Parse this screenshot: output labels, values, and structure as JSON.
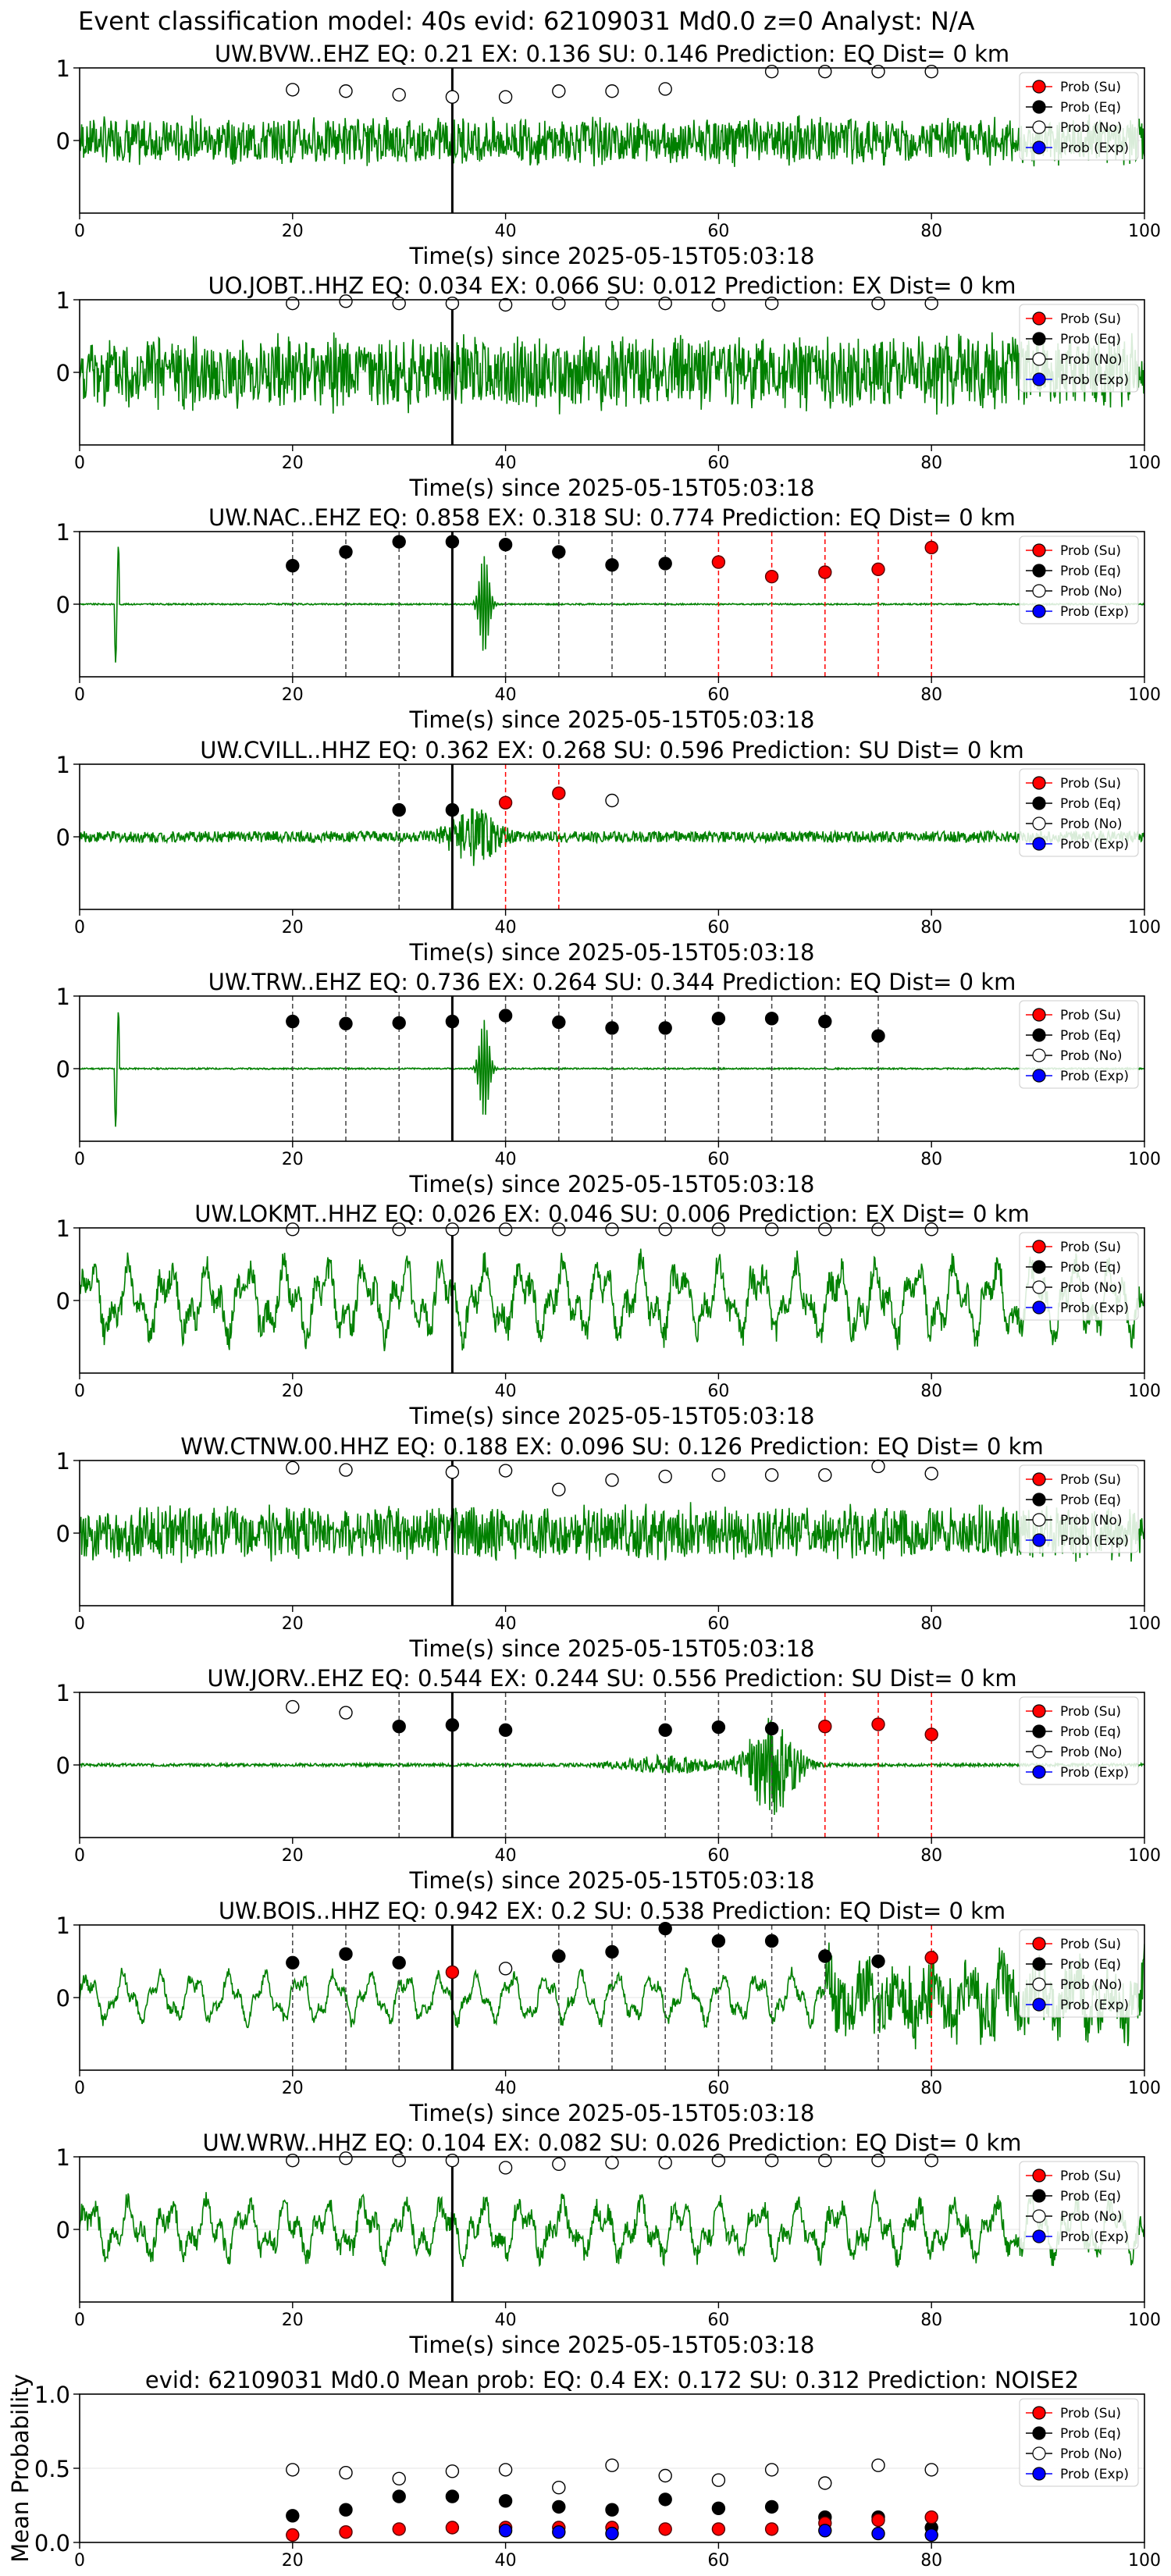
{
  "figure_title": "Event classification model: 40s evid: 62109031 Md0.0 z=0 Analyst: N/A",
  "colors": {
    "trace": "#008000",
    "su": "#ff0000",
    "eq": "#000000",
    "no": "#ffffff",
    "exp": "#0000ff"
  },
  "legend": [
    "Prob (Su)",
    "Prob (Eq)",
    "Prob (No)",
    "Prob (Exp)"
  ],
  "chart_data": [
    {
      "type": "line",
      "title": "UW.BVW..EHZ   EQ: 0.21  EX: 0.136  SU: 0.146   Prediction: EQ    Dist= 0 km",
      "xlabel": "Time(s) since 2025-05-15T05:03:18",
      "ylabel": "",
      "xlim": [
        0,
        100
      ],
      "ylim": [
        -1,
        1
      ],
      "xticks": [
        "0",
        "20",
        "40",
        "60",
        "80",
        "100"
      ],
      "yticks": [
        "1",
        "0"
      ],
      "marker_time": 35,
      "trace_style": "noise",
      "trace_amp": 0.35,
      "su": [],
      "eq": [],
      "no": [
        [
          20,
          0.7
        ],
        [
          25,
          0.68
        ],
        [
          30,
          0.63
        ],
        [
          35,
          0.6
        ],
        [
          40,
          0.6
        ],
        [
          45,
          0.68
        ],
        [
          50,
          0.68
        ],
        [
          55,
          0.71
        ],
        [
          65,
          0.95
        ],
        [
          70,
          0.95
        ],
        [
          75,
          0.95
        ],
        [
          80,
          0.95
        ]
      ],
      "exp": [],
      "eq_lines": [],
      "su_lines": []
    },
    {
      "type": "line",
      "title": "UO.JOBT..HHZ   EQ: 0.034  EX: 0.066  SU: 0.012   Prediction: EX    Dist= 0 km",
      "xlabel": "Time(s) since 2025-05-15T05:03:18",
      "ylabel": "",
      "xlim": [
        0,
        100
      ],
      "ylim": [
        -1,
        1
      ],
      "xticks": [
        "0",
        "20",
        "40",
        "60",
        "80",
        "100"
      ],
      "yticks": [
        "1",
        "0"
      ],
      "marker_time": 35,
      "trace_style": "noise",
      "trace_amp": 0.55,
      "su": [],
      "eq": [],
      "no": [
        [
          20,
          0.95
        ],
        [
          25,
          0.98
        ],
        [
          30,
          0.95
        ],
        [
          35,
          0.95
        ],
        [
          40,
          0.93
        ],
        [
          45,
          0.95
        ],
        [
          50,
          0.95
        ],
        [
          55,
          0.95
        ],
        [
          60,
          0.93
        ],
        [
          65,
          0.95
        ],
        [
          75,
          0.95
        ],
        [
          80,
          0.95
        ]
      ],
      "exp": [],
      "eq_lines": [],
      "su_lines": []
    },
    {
      "type": "line",
      "title": "UW.NAC..EHZ   EQ: 0.858  EX: 0.318  SU: 0.774   Prediction: EQ    Dist= 0 km",
      "xlabel": "Time(s) since 2025-05-15T05:03:18",
      "ylabel": "",
      "xlim": [
        0,
        100
      ],
      "ylim": [
        -1,
        1
      ],
      "xticks": [
        "0",
        "20",
        "40",
        "60",
        "80",
        "100"
      ],
      "yticks": [
        "1",
        "0"
      ],
      "marker_time": 35,
      "trace_style": "flat_spikes",
      "trace_amp": 0.02,
      "su": [
        [
          60,
          0.58
        ],
        [
          65,
          0.38
        ],
        [
          70,
          0.44
        ],
        [
          75,
          0.48
        ],
        [
          80,
          0.78
        ]
      ],
      "eq": [
        [
          20,
          0.53
        ],
        [
          25,
          0.72
        ],
        [
          30,
          0.86
        ],
        [
          35,
          0.86
        ],
        [
          40,
          0.82
        ],
        [
          45,
          0.72
        ],
        [
          50,
          0.54
        ],
        [
          55,
          0.56
        ]
      ],
      "no": [],
      "exp": [],
      "eq_lines": [
        20,
        25,
        30,
        40,
        45,
        50,
        55
      ],
      "su_lines": [
        60,
        65,
        70,
        75,
        80
      ]
    },
    {
      "type": "line",
      "title": "UW.CVILL..HHZ   EQ: 0.362  EX: 0.268  SU: 0.596   Prediction: SU    Dist= 0 km",
      "xlabel": "Time(s) since 2025-05-15T05:03:18",
      "ylabel": "",
      "xlim": [
        0,
        100
      ],
      "ylim": [
        -1,
        1
      ],
      "xticks": [
        "0",
        "20",
        "40",
        "60",
        "80",
        "100"
      ],
      "yticks": [
        "1",
        "0"
      ],
      "marker_time": 35,
      "trace_style": "burst",
      "trace_amp": 0.25,
      "su": [
        [
          40,
          0.47
        ],
        [
          45,
          0.6
        ]
      ],
      "eq": [
        [
          30,
          0.37
        ],
        [
          35,
          0.37
        ]
      ],
      "no": [
        [
          50,
          0.5
        ]
      ],
      "exp": [],
      "eq_lines": [
        30
      ],
      "su_lines": [
        40,
        45
      ]
    },
    {
      "type": "line",
      "title": "UW.TRW..EHZ   EQ: 0.736  EX: 0.264  SU: 0.344   Prediction: EQ    Dist= 0 km",
      "xlabel": "Time(s) since 2025-05-15T05:03:18",
      "ylabel": "",
      "xlim": [
        0,
        100
      ],
      "ylim": [
        -1,
        1
      ],
      "xticks": [
        "0",
        "20",
        "40",
        "60",
        "80",
        "100"
      ],
      "yticks": [
        "1",
        "0"
      ],
      "marker_time": 35,
      "trace_style": "flat_spikes",
      "trace_amp": 0.02,
      "su": [],
      "eq": [
        [
          20,
          0.65
        ],
        [
          25,
          0.62
        ],
        [
          30,
          0.63
        ],
        [
          35,
          0.65
        ],
        [
          40,
          0.73
        ],
        [
          45,
          0.64
        ],
        [
          50,
          0.56
        ],
        [
          55,
          0.56
        ],
        [
          60,
          0.69
        ],
        [
          65,
          0.69
        ],
        [
          70,
          0.65
        ],
        [
          75,
          0.45
        ]
      ],
      "no": [],
      "exp": [],
      "eq_lines": [
        20,
        25,
        30,
        40,
        45,
        50,
        55,
        60,
        65,
        70,
        75
      ],
      "su_lines": []
    },
    {
      "type": "line",
      "title": "UW.LOKMT..HHZ   EQ: 0.026  EX: 0.046  SU: 0.006   Prediction: EX    Dist= 0 km",
      "xlabel": "Time(s) since 2025-05-15T05:03:18",
      "ylabel": "",
      "xlim": [
        0,
        100
      ],
      "ylim": [
        -1,
        1
      ],
      "xticks": [
        "0",
        "20",
        "40",
        "60",
        "80",
        "100"
      ],
      "yticks": [
        "1",
        "0"
      ],
      "marker_time": 35,
      "trace_style": "wave",
      "trace_amp": 0.6,
      "su": [],
      "eq": [],
      "no": [
        [
          20,
          0.98
        ],
        [
          30,
          0.98
        ],
        [
          35,
          0.98
        ],
        [
          40,
          0.98
        ],
        [
          45,
          0.98
        ],
        [
          50,
          0.98
        ],
        [
          55,
          0.98
        ],
        [
          60,
          0.98
        ],
        [
          65,
          0.98
        ],
        [
          70,
          0.98
        ],
        [
          75,
          0.98
        ],
        [
          80,
          0.98
        ]
      ],
      "exp": [],
      "eq_lines": [],
      "su_lines": []
    },
    {
      "type": "line",
      "title": "WW.CTNW.00.HHZ   EQ: 0.188  EX: 0.096  SU: 0.126   Prediction: EQ    Dist= 0 km",
      "xlabel": "Time(s) since 2025-05-15T05:03:18",
      "ylabel": "",
      "xlim": [
        0,
        100
      ],
      "ylim": [
        -1,
        1
      ],
      "xticks": [
        "0",
        "20",
        "40",
        "60",
        "80",
        "100"
      ],
      "yticks": [
        "1",
        "0"
      ],
      "marker_time": 35,
      "trace_style": "noise",
      "trace_amp": 0.4,
      "su": [],
      "eq": [],
      "no": [
        [
          20,
          0.9
        ],
        [
          25,
          0.87
        ],
        [
          35,
          0.84
        ],
        [
          40,
          0.86
        ],
        [
          45,
          0.6
        ],
        [
          50,
          0.73
        ],
        [
          55,
          0.78
        ],
        [
          60,
          0.8
        ],
        [
          65,
          0.8
        ],
        [
          70,
          0.8
        ],
        [
          75,
          0.92
        ],
        [
          80,
          0.82
        ]
      ],
      "exp": [],
      "eq_lines": [],
      "su_lines": []
    },
    {
      "type": "line",
      "title": "UW.JORV..EHZ   EQ: 0.544  EX: 0.244  SU: 0.556   Prediction: SU    Dist= 0 km",
      "xlabel": "Time(s) since 2025-05-15T05:03:18",
      "ylabel": "",
      "xlim": [
        0,
        100
      ],
      "ylim": [
        -1,
        1
      ],
      "xticks": [
        "0",
        "20",
        "40",
        "60",
        "80",
        "100"
      ],
      "yticks": [
        "1",
        "0"
      ],
      "marker_time": 35,
      "trace_style": "late_burst",
      "trace_amp": 0.02,
      "su": [
        [
          70,
          0.53
        ],
        [
          75,
          0.56
        ],
        [
          80,
          0.42
        ]
      ],
      "eq": [
        [
          30,
          0.53
        ],
        [
          35,
          0.55
        ],
        [
          40,
          0.48
        ],
        [
          55,
          0.48
        ],
        [
          60,
          0.52
        ],
        [
          65,
          0.5
        ]
      ],
      "no": [
        [
          20,
          0.8
        ],
        [
          25,
          0.72
        ]
      ],
      "exp": [],
      "eq_lines": [
        30,
        40,
        55,
        60,
        65
      ],
      "su_lines": [
        70,
        75,
        80
      ]
    },
    {
      "type": "line",
      "title": "UW.BOIS..HHZ   EQ: 0.942  EX: 0.2  SU: 0.538   Prediction: EQ    Dist= 0 km",
      "xlabel": "Time(s) since 2025-05-15T05:03:18",
      "ylabel": "",
      "xlim": [
        0,
        100
      ],
      "ylim": [
        -1,
        1
      ],
      "xticks": [
        "0",
        "20",
        "40",
        "60",
        "80",
        "100"
      ],
      "yticks": [
        "1",
        "0"
      ],
      "marker_time": 35,
      "trace_style": "wave_late_noise",
      "trace_amp": 0.55,
      "su": [
        [
          35,
          0.35
        ],
        [
          80,
          0.55
        ]
      ],
      "eq": [
        [
          20,
          0.48
        ],
        [
          25,
          0.6
        ],
        [
          30,
          0.48
        ],
        [
          45,
          0.57
        ],
        [
          50,
          0.63
        ],
        [
          55,
          0.95
        ],
        [
          60,
          0.78
        ],
        [
          65,
          0.78
        ],
        [
          70,
          0.57
        ],
        [
          75,
          0.5
        ]
      ],
      "no": [
        [
          40,
          0.4
        ]
      ],
      "exp": [],
      "eq_lines": [
        20,
        25,
        30,
        45,
        50,
        55,
        60,
        65,
        70,
        75
      ],
      "su_lines": [
        80
      ]
    },
    {
      "type": "line",
      "title": "UW.WRW..HHZ   EQ: 0.104  EX: 0.082  SU: 0.026   Prediction: EQ    Dist= 0 km",
      "xlabel": "Time(s) since 2025-05-15T05:03:18",
      "ylabel": "",
      "xlim": [
        0,
        100
      ],
      "ylim": [
        -1,
        1
      ],
      "xticks": [
        "0",
        "20",
        "40",
        "60",
        "80",
        "100"
      ],
      "yticks": [
        "1",
        "0"
      ],
      "marker_time": 35,
      "trace_style": "wave",
      "trace_amp": 0.45,
      "su": [],
      "eq": [],
      "no": [
        [
          20,
          0.95
        ],
        [
          25,
          0.98
        ],
        [
          30,
          0.95
        ],
        [
          35,
          0.95
        ],
        [
          40,
          0.85
        ],
        [
          45,
          0.9
        ],
        [
          50,
          0.92
        ],
        [
          55,
          0.92
        ],
        [
          60,
          0.95
        ],
        [
          65,
          0.95
        ],
        [
          70,
          0.95
        ],
        [
          75,
          0.95
        ],
        [
          80,
          0.95
        ]
      ],
      "exp": [],
      "eq_lines": [],
      "su_lines": []
    },
    {
      "type": "scatter",
      "title": "evid: 62109031   Md0.0   Mean prob:   EQ: 0.4  EX: 0.172  SU: 0.312   Prediction: NOISE2",
      "xlabel": "",
      "ylabel": "Mean Probability",
      "xlim": [
        0,
        100
      ],
      "ylim": [
        0,
        1
      ],
      "xticks": [
        "0",
        "20",
        "40",
        "60",
        "80",
        "100"
      ],
      "yticks": [
        "1.0",
        "0.5",
        "0.0"
      ],
      "marker_time": null,
      "trace_style": "none",
      "trace_amp": 0,
      "su": [
        [
          20,
          0.05
        ],
        [
          25,
          0.07
        ],
        [
          30,
          0.09
        ],
        [
          35,
          0.1
        ],
        [
          40,
          0.1
        ],
        [
          45,
          0.1
        ],
        [
          50,
          0.1
        ],
        [
          55,
          0.09
        ],
        [
          60,
          0.09
        ],
        [
          65,
          0.09
        ],
        [
          70,
          0.13
        ],
        [
          75,
          0.15
        ],
        [
          80,
          0.17
        ]
      ],
      "eq": [
        [
          20,
          0.18
        ],
        [
          25,
          0.22
        ],
        [
          30,
          0.31
        ],
        [
          35,
          0.31
        ],
        [
          40,
          0.28
        ],
        [
          45,
          0.24
        ],
        [
          50,
          0.22
        ],
        [
          55,
          0.29
        ],
        [
          60,
          0.23
        ],
        [
          65,
          0.24
        ],
        [
          70,
          0.17
        ],
        [
          75,
          0.17
        ],
        [
          80,
          0.1
        ]
      ],
      "no": [
        [
          20,
          0.49
        ],
        [
          25,
          0.47
        ],
        [
          30,
          0.43
        ],
        [
          35,
          0.48
        ],
        [
          40,
          0.49
        ],
        [
          45,
          0.37
        ],
        [
          50,
          0.52
        ],
        [
          55,
          0.45
        ],
        [
          60,
          0.42
        ],
        [
          65,
          0.49
        ],
        [
          70,
          0.4
        ],
        [
          75,
          0.52
        ],
        [
          80,
          0.49
        ]
      ],
      "exp": [
        [
          40,
          0.08
        ],
        [
          45,
          0.07
        ],
        [
          50,
          0.06
        ],
        [
          70,
          0.08
        ],
        [
          75,
          0.06
        ],
        [
          80,
          0.05
        ]
      ],
      "eq_lines": [],
      "su_lines": []
    }
  ]
}
